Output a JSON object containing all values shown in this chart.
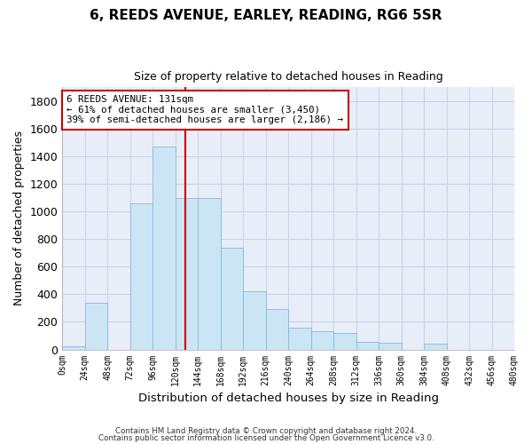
{
  "title1": "6, REEDS AVENUE, EARLEY, READING, RG6 5SR",
  "title2": "Size of property relative to detached houses in Reading",
  "xlabel": "Distribution of detached houses by size in Reading",
  "ylabel": "Number of detached properties",
  "bin_edges": [
    0,
    24,
    48,
    72,
    96,
    120,
    144,
    168,
    192,
    216,
    240,
    264,
    288,
    312,
    336,
    360,
    384,
    408,
    432,
    456,
    480
  ],
  "bar_heights": [
    20,
    340,
    0,
    1060,
    1470,
    1100,
    1100,
    740,
    420,
    290,
    160,
    130,
    120,
    55,
    50,
    0,
    40,
    0,
    0,
    0
  ],
  "bar_color": "#cce5f5",
  "bar_edgecolor": "#88b8d8",
  "grid_color": "#c8d4e8",
  "background_color": "#e8eef8",
  "property_size": 131,
  "vline_color": "#cc0000",
  "annotation_text": "6 REEDS AVENUE: 131sqm\n← 61% of detached houses are smaller (3,450)\n39% of semi-detached houses are larger (2,186) →",
  "annotation_box_edgecolor": "#cc0000",
  "ylim": [
    0,
    1900
  ],
  "yticks": [
    0,
    200,
    400,
    600,
    800,
    1000,
    1200,
    1400,
    1600,
    1800
  ],
  "footer1": "Contains HM Land Registry data © Crown copyright and database right 2024.",
  "footer2": "Contains public sector information licensed under the Open Government Licence v3.0."
}
